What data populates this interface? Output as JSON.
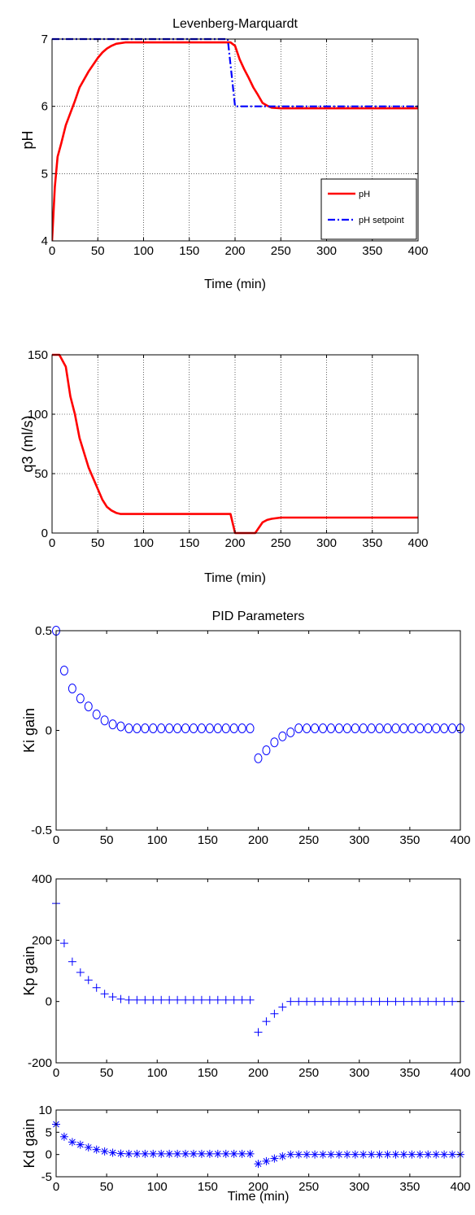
{
  "chart_data": [
    {
      "type": "line",
      "title": "Levenberg-Marquardt",
      "xlabel": "Time (min)",
      "ylabel": "pH",
      "xlim": [
        0,
        400
      ],
      "ylim": [
        4,
        7
      ],
      "xticks": [
        0,
        50,
        100,
        150,
        200,
        250,
        300,
        350,
        400
      ],
      "yticks": [
        4,
        5,
        6,
        7
      ],
      "grid": true,
      "legend": "bottom-right",
      "series": [
        {
          "name": "pH",
          "color": "#ff0000",
          "style": "solid",
          "x": [
            0,
            3,
            6,
            10,
            15,
            20,
            25,
            30,
            40,
            50,
            55,
            60,
            65,
            70,
            80,
            100,
            150,
            190,
            195,
            200,
            205,
            210,
            215,
            220,
            225,
            230,
            235,
            240,
            250,
            300,
            350,
            400
          ],
          "y": [
            4.0,
            4.8,
            5.25,
            5.45,
            5.72,
            5.9,
            6.08,
            6.28,
            6.52,
            6.72,
            6.8,
            6.86,
            6.9,
            6.93,
            6.95,
            6.95,
            6.95,
            6.95,
            6.95,
            6.9,
            6.7,
            6.55,
            6.42,
            6.28,
            6.17,
            6.05,
            6.01,
            5.98,
            5.97,
            5.97,
            5.97,
            5.97
          ]
        },
        {
          "name": "pH setpoint",
          "color": "#0000ff",
          "style": "dashdot",
          "x": [
            0,
            192,
            200,
            400
          ],
          "y": [
            7,
            7,
            6,
            6
          ]
        }
      ]
    },
    {
      "type": "line",
      "title": "",
      "xlabel": "Time (min)",
      "ylabel": "q3 (ml/s)",
      "xlim": [
        0,
        400
      ],
      "ylim": [
        0,
        150
      ],
      "xticks": [
        0,
        50,
        100,
        150,
        200,
        250,
        300,
        350,
        400
      ],
      "yticks": [
        0,
        50,
        100,
        150
      ],
      "grid": true,
      "series": [
        {
          "color": "#ff0000",
          "style": "solid",
          "x": [
            0,
            8,
            15,
            20,
            25,
            30,
            40,
            50,
            55,
            60,
            65,
            70,
            75,
            80,
            100,
            150,
            195,
            200,
            222,
            230,
            235,
            240,
            250,
            300,
            400
          ],
          "y": [
            150,
            150,
            140,
            115,
            100,
            80,
            55,
            37,
            28,
            22,
            19,
            17,
            16,
            16,
            16,
            16,
            16,
            0,
            0,
            9,
            11,
            12,
            13,
            13,
            13
          ]
        }
      ]
    },
    {
      "type": "scatter",
      "title": "PID Parameters",
      "xlabel": "",
      "ylabel": "Ki gain",
      "xlim": [
        0,
        400
      ],
      "ylim": [
        -0.5,
        0.5
      ],
      "xticks": [
        0,
        50,
        100,
        150,
        200,
        250,
        300,
        350,
        400
      ],
      "yticks": [
        -0.5,
        0,
        0.5
      ],
      "ytick_labels": [
        "-0.5",
        "0",
        "0.5"
      ],
      "grid": false,
      "marker": "circle",
      "color": "#0000ff",
      "x": [
        0,
        8,
        16,
        24,
        32,
        40,
        48,
        56,
        64,
        72,
        80,
        88,
        96,
        104,
        112,
        120,
        128,
        136,
        144,
        152,
        160,
        168,
        176,
        184,
        192,
        200,
        208,
        216,
        224,
        232,
        240,
        248,
        256,
        264,
        272,
        280,
        288,
        296,
        304,
        312,
        320,
        328,
        336,
        344,
        352,
        360,
        368,
        376,
        384,
        392,
        400
      ],
      "y": [
        0.5,
        0.3,
        0.21,
        0.16,
        0.12,
        0.08,
        0.05,
        0.03,
        0.02,
        0.01,
        0.01,
        0.01,
        0.01,
        0.01,
        0.01,
        0.01,
        0.01,
        0.01,
        0.01,
        0.01,
        0.01,
        0.01,
        0.01,
        0.01,
        0.01,
        -0.14,
        -0.1,
        -0.06,
        -0.03,
        -0.01,
        0.01,
        0.01,
        0.01,
        0.01,
        0.01,
        0.01,
        0.01,
        0.01,
        0.01,
        0.01,
        0.01,
        0.01,
        0.01,
        0.01,
        0.01,
        0.01,
        0.01,
        0.01,
        0.01,
        0.01,
        0.01
      ]
    },
    {
      "type": "scatter",
      "title": "",
      "xlabel": "",
      "ylabel": "Kp gain",
      "xlim": [
        0,
        400
      ],
      "ylim": [
        -200,
        400
      ],
      "xticks": [
        0,
        50,
        100,
        150,
        200,
        250,
        300,
        350,
        400
      ],
      "yticks": [
        -200,
        0,
        200,
        400
      ],
      "grid": false,
      "marker": "plus",
      "color": "#0000ff",
      "x": [
        0,
        8,
        16,
        24,
        32,
        40,
        48,
        56,
        64,
        72,
        80,
        88,
        96,
        104,
        112,
        120,
        128,
        136,
        144,
        152,
        160,
        168,
        176,
        184,
        192,
        200,
        208,
        216,
        224,
        232,
        240,
        248,
        256,
        264,
        272,
        280,
        288,
        296,
        304,
        312,
        320,
        328,
        336,
        344,
        352,
        360,
        368,
        376,
        384,
        392,
        400
      ],
      "y": [
        320,
        190,
        130,
        95,
        70,
        45,
        25,
        15,
        8,
        5,
        5,
        5,
        5,
        5,
        5,
        5,
        5,
        5,
        5,
        5,
        5,
        5,
        5,
        5,
        5,
        -100,
        -65,
        -40,
        -18,
        0,
        0,
        0,
        0,
        0,
        0,
        0,
        0,
        0,
        0,
        0,
        0,
        0,
        0,
        0,
        0,
        0,
        0,
        0,
        0,
        0,
        0
      ]
    },
    {
      "type": "scatter",
      "title": "",
      "xlabel": "Time (min)",
      "ylabel": "Kd gain",
      "xlim": [
        0,
        400
      ],
      "ylim": [
        -5,
        10
      ],
      "xticks": [
        0,
        50,
        100,
        150,
        200,
        250,
        300,
        350,
        400
      ],
      "yticks": [
        -5,
        0,
        5,
        10
      ],
      "grid": false,
      "marker": "asterisk",
      "color": "#0000ff",
      "x": [
        0,
        8,
        16,
        24,
        32,
        40,
        48,
        56,
        64,
        72,
        80,
        88,
        96,
        104,
        112,
        120,
        128,
        136,
        144,
        152,
        160,
        168,
        176,
        184,
        192,
        200,
        208,
        216,
        224,
        232,
        240,
        248,
        256,
        264,
        272,
        280,
        288,
        296,
        304,
        312,
        320,
        328,
        336,
        344,
        352,
        360,
        368,
        376,
        384,
        392,
        400
      ],
      "y": [
        6.8,
        4.0,
        2.8,
        2.2,
        1.6,
        1.1,
        0.7,
        0.4,
        0.2,
        0.15,
        0.15,
        0.15,
        0.15,
        0.15,
        0.15,
        0.15,
        0.15,
        0.15,
        0.15,
        0.15,
        0.15,
        0.15,
        0.15,
        0.15,
        0.15,
        -2.1,
        -1.5,
        -0.9,
        -0.4,
        0.0,
        0.0,
        0.0,
        0.0,
        0.0,
        0.0,
        0.0,
        0.0,
        0.0,
        0.0,
        0.0,
        0.0,
        0.0,
        0.0,
        0.0,
        0.0,
        0.0,
        0.0,
        0.0,
        0.0,
        0.0,
        0.0
      ]
    }
  ]
}
